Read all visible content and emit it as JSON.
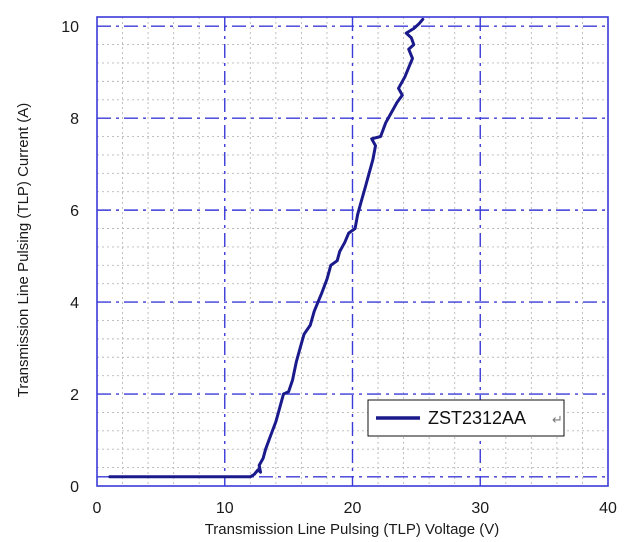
{
  "chart_data": {
    "type": "line",
    "xlabel": "Transmission Line Pulsing (TLP) Voltage (V)",
    "ylabel": "Transmission Line Pulsing (TLP) Current (A)",
    "xlim": [
      0,
      40
    ],
    "ylim": [
      0,
      10.2
    ],
    "x_ticks": [
      "0",
      "10",
      "20",
      "30",
      "40"
    ],
    "y_ticks": [
      "0",
      "2",
      "4",
      "6",
      "8",
      "10"
    ],
    "grid": "on",
    "legend_position": "lower-right",
    "series": [
      {
        "name": "ZST2312AA",
        "color": "#1a1a8c",
        "points": [
          [
            1.0,
            0.2
          ],
          [
            3.0,
            0.2
          ],
          [
            6.0,
            0.2
          ],
          [
            9.0,
            0.2
          ],
          [
            11.0,
            0.2
          ],
          [
            12.0,
            0.2
          ],
          [
            12.3,
            0.25
          ],
          [
            12.6,
            0.35
          ],
          [
            12.8,
            0.3
          ],
          [
            12.7,
            0.45
          ],
          [
            13.0,
            0.6
          ],
          [
            13.2,
            0.8
          ],
          [
            13.6,
            1.1
          ],
          [
            14.0,
            1.4
          ],
          [
            14.3,
            1.7
          ],
          [
            14.6,
            2.0
          ],
          [
            15.0,
            2.05
          ],
          [
            15.3,
            2.3
          ],
          [
            15.6,
            2.7
          ],
          [
            15.9,
            3.0
          ],
          [
            16.2,
            3.3
          ],
          [
            16.7,
            3.5
          ],
          [
            17.0,
            3.8
          ],
          [
            17.3,
            4.0
          ],
          [
            17.6,
            4.2
          ],
          [
            18.0,
            4.5
          ],
          [
            18.3,
            4.8
          ],
          [
            18.8,
            4.9
          ],
          [
            19.0,
            5.1
          ],
          [
            19.4,
            5.3
          ],
          [
            19.7,
            5.5
          ],
          [
            20.2,
            5.6
          ],
          [
            20.4,
            5.9
          ],
          [
            20.7,
            6.2
          ],
          [
            21.0,
            6.5
          ],
          [
            21.3,
            6.8
          ],
          [
            21.6,
            7.1
          ],
          [
            21.8,
            7.4
          ],
          [
            21.5,
            7.55
          ],
          [
            22.2,
            7.6
          ],
          [
            22.6,
            7.9
          ],
          [
            23.0,
            8.1
          ],
          [
            23.5,
            8.35
          ],
          [
            23.9,
            8.5
          ],
          [
            23.6,
            8.65
          ],
          [
            24.1,
            8.9
          ],
          [
            24.4,
            9.1
          ],
          [
            24.7,
            9.3
          ],
          [
            24.4,
            9.5
          ],
          [
            24.8,
            9.6
          ],
          [
            24.6,
            9.75
          ],
          [
            24.2,
            9.85
          ],
          [
            24.8,
            9.95
          ],
          [
            25.2,
            10.05
          ],
          [
            25.5,
            10.15
          ]
        ]
      }
    ]
  }
}
